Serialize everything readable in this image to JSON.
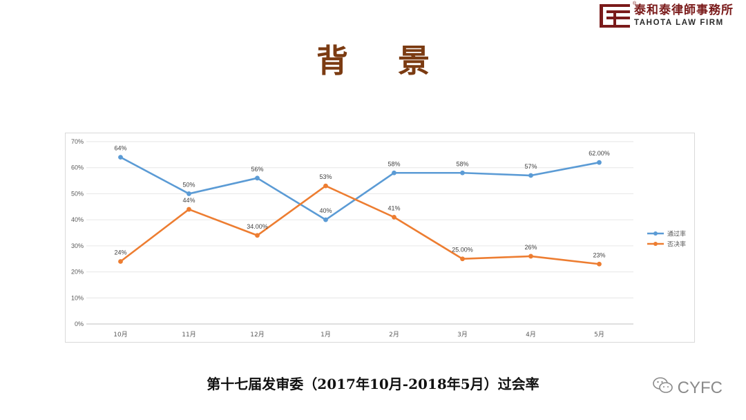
{
  "logo": {
    "cn": "泰和泰律師事務所",
    "en": "TAHOTA LAW FIRM",
    "reg": "®"
  },
  "title": "背 景",
  "caption": "第十七届发审委（2017年10月-2018年5月）过会率",
  "watermark": {
    "text": "CYFC",
    "icon": "wechat-icon"
  },
  "colors": {
    "brand": "#7a1a1a",
    "title": "#7b3b12",
    "pass": "#5b9bd5",
    "reject": "#ed7d31"
  },
  "chart_data": {
    "type": "line",
    "categories": [
      "10月",
      "11月",
      "12月",
      "1月",
      "2月",
      "3月",
      "4月",
      "5月"
    ],
    "ylim": [
      0,
      70
    ],
    "yticks": [
      "0%",
      "10%",
      "20%",
      "30%",
      "40%",
      "50%",
      "60%",
      "70%"
    ],
    "grid": true,
    "legend_position": "right",
    "series": [
      {
        "name": "通过率",
        "color": "#5b9bd5",
        "values": [
          64,
          50,
          56,
          40,
          58,
          58,
          57,
          62
        ],
        "labels": [
          "64%",
          "50%",
          "56%",
          "40%",
          "58%",
          "58%",
          "57%",
          "62.00%"
        ]
      },
      {
        "name": "否决率",
        "color": "#ed7d31",
        "values": [
          24,
          44,
          34,
          53,
          41,
          25,
          26,
          23
        ],
        "labels": [
          "24%",
          "44%",
          "34.00%",
          "53%",
          "41%",
          "25.00%",
          "26%",
          "23%"
        ]
      }
    ]
  }
}
